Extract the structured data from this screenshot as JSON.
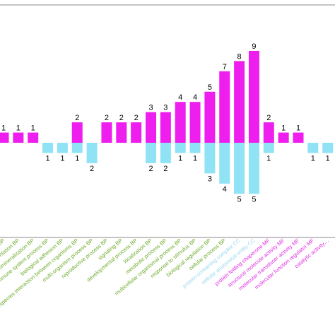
{
  "chart_data": {
    "type": "bar",
    "title": "",
    "xlabel": "",
    "ylabel": "",
    "ylim": [
      -5.6,
      9.6
    ],
    "grid": false,
    "legend": "none",
    "colors": {
      "up": "#ee1fee",
      "down": "#8fe3f5",
      "BP": "#6cac2c",
      "CC": "#9ad8ee",
      "MF": "#de2ede",
      "frame": "#888888"
    },
    "categories": [
      {
        "label": "…ation BP",
        "group": "BP"
      },
      {
        "label": "pigmentation BP",
        "group": "BP"
      },
      {
        "label": "biomineralization BP",
        "group": "BP"
      },
      {
        "label": "immune system process BP",
        "group": "BP"
      },
      {
        "label": "biological adhesion BP",
        "group": "BP"
      },
      {
        "label": "interspecies interaction between organisms BP",
        "group": "BP"
      },
      {
        "label": "multi-organism process BP",
        "group": "BP"
      },
      {
        "label": "reproductive process BP",
        "group": "BP"
      },
      {
        "label": "signaling BP",
        "group": "BP"
      },
      {
        "label": "developmental process BP",
        "group": "BP"
      },
      {
        "label": "localization BP",
        "group": "BP"
      },
      {
        "label": "metabolic process BP",
        "group": "BP"
      },
      {
        "label": "multicellular organismal process BP",
        "group": "BP"
      },
      {
        "label": "response to stimulus BP",
        "group": "BP"
      },
      {
        "label": "biological regulation BP",
        "group": "BP"
      },
      {
        "label": "cellular process BP",
        "group": "BP"
      },
      {
        "label": "protein-containing complex CC",
        "group": "CC"
      },
      {
        "label": "cellular anatomical entity CC",
        "group": "CC"
      },
      {
        "label": "protein folding chaperone MF",
        "group": "MF"
      },
      {
        "label": "structural molecule activity MF",
        "group": "MF"
      },
      {
        "label": "molecular transducer activity MF",
        "group": "MF"
      },
      {
        "label": "molecular function regulator MF",
        "group": "MF"
      },
      {
        "label": "catalytic activity…",
        "group": "MF"
      }
    ],
    "series": [
      {
        "values": [
          1,
          1,
          1,
          0,
          0,
          2,
          0,
          2,
          2,
          2,
          3,
          3,
          4,
          4,
          5,
          7,
          8,
          9,
          2,
          1,
          1,
          0,
          0
        ]
      },
      {
        "values": [
          0,
          0,
          0,
          1,
          1,
          1,
          2,
          0,
          0,
          0,
          2,
          2,
          1,
          1,
          3,
          4,
          5,
          5,
          1,
          0,
          0,
          1,
          1
        ]
      }
    ]
  }
}
